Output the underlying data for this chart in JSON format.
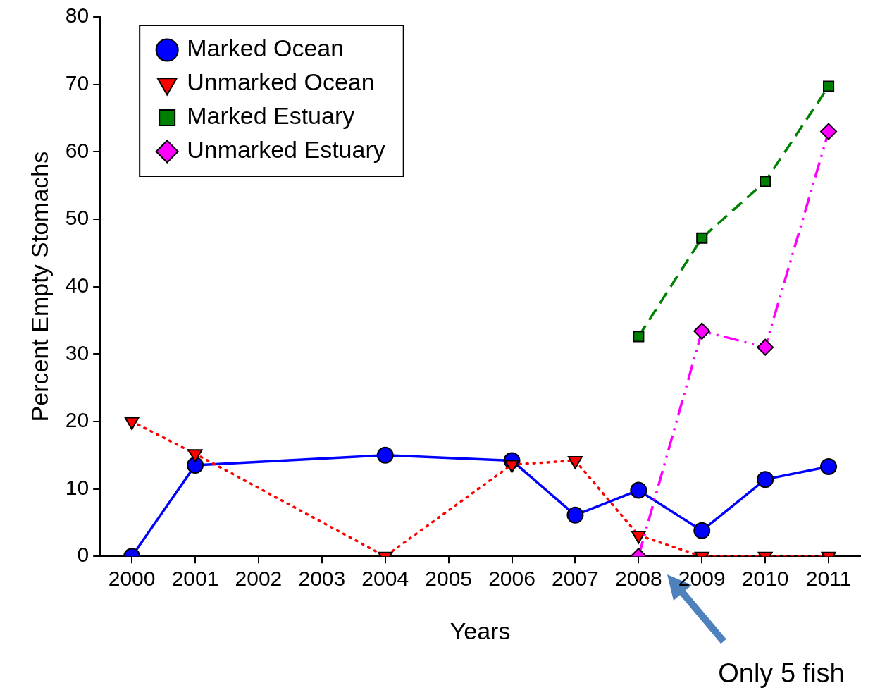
{
  "chart_data": {
    "type": "line",
    "xlabel": "Years",
    "ylabel": "Percent Empty Stomachs",
    "xlim": [
      1999.5,
      2011.5
    ],
    "xticks": [
      2000,
      2001,
      2002,
      2003,
      2004,
      2005,
      2006,
      2007,
      2008,
      2009,
      2010,
      2011
    ],
    "ylim": [
      0,
      80
    ],
    "yticks": [
      0,
      10,
      20,
      30,
      40,
      50,
      60,
      70,
      80
    ],
    "grid": false,
    "legend": "top left",
    "series": [
      {
        "name": "Marked Ocean",
        "color": "#0000ff",
        "marker": "circle",
        "line_style": "solid",
        "x": [
          2000,
          2001,
          2004,
          2006,
          2007,
          2008,
          2009,
          2010,
          2011
        ],
        "values": [
          0,
          13.5,
          15,
          14.2,
          6.1,
          9.8,
          3.8,
          11.4,
          13.3
        ]
      },
      {
        "name": "Unmarked Ocean",
        "color": "#ff0000",
        "marker": "triangle",
        "line_style": "dotted",
        "x": [
          2000,
          2001,
          2004,
          2006,
          2007,
          2008,
          2009,
          2010,
          2011
        ],
        "values": [
          20,
          15.2,
          0,
          13.6,
          14.2,
          3.1,
          0,
          0,
          0
        ]
      },
      {
        "name": "Marked Estuary",
        "color": "#008000",
        "marker": "square",
        "line_style": "dashed",
        "x": [
          2008,
          2009,
          2010,
          2011
        ],
        "values": [
          32.6,
          47.2,
          55.6,
          69.7
        ]
      },
      {
        "name": "Unmarked Estuary",
        "color": "#ff00ff",
        "marker": "diamond",
        "line_style": "dashdot",
        "x": [
          2008,
          2009,
          2010,
          2011
        ],
        "values": [
          0,
          33.4,
          31,
          63
        ]
      }
    ],
    "annotations": [
      "Only 5 fish"
    ]
  }
}
